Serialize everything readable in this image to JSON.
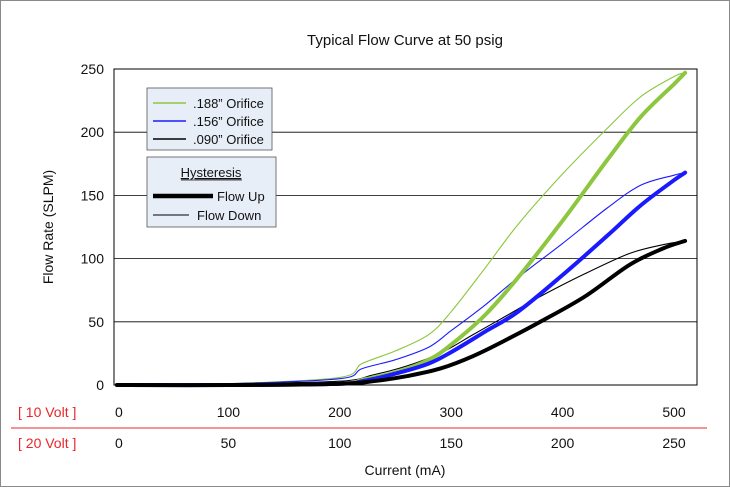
{
  "chart_data": {
    "type": "line",
    "title": "Typical Flow Curve at 50 psig",
    "ylabel": "Flow Rate (SLPM)",
    "xlabel": "Current (mA)",
    "ylim": [
      0,
      250
    ],
    "yticks": [
      "0",
      "50",
      "100",
      "150",
      "200",
      "250"
    ],
    "xlim": [
      0,
      520
    ],
    "grid": "horizontal",
    "x_scales": [
      {
        "label": "[ 10 Volt ]",
        "ticks": [
          "0",
          "100",
          "200",
          "300",
          "400",
          "500"
        ],
        "color": "#e8262b"
      },
      {
        "label": "[ 20 Volt ]",
        "ticks": [
          "0",
          "50",
          "100",
          "150",
          "200",
          "250"
        ],
        "color": "#e8262b"
      }
    ],
    "legend_orifice": {
      "placement": "top-left",
      "entries": [
        {
          "label": ".188” Orifice",
          "color": "#8dc63f"
        },
        {
          "label": ".156” Orifice",
          "color": "#1a1aff"
        },
        {
          "label": ".090” Orifice",
          "color": "#000000"
        }
      ]
    },
    "legend_hysteresis": {
      "title": "Hysteresis",
      "entries": [
        {
          "label": "Flow Up",
          "style": "thick"
        },
        {
          "label": "Flow Down",
          "style": "thin"
        }
      ]
    },
    "series": [
      {
        "orifice": ".188” Orifice",
        "direction": "Flow Up",
        "color": "#8dc63f",
        "x": [
          0,
          100,
          200,
          220,
          250,
          280,
          300,
          330,
          360,
          400,
          440,
          470,
          500,
          510
        ],
        "y": [
          0,
          0,
          1,
          4,
          10,
          20,
          32,
          55,
          85,
          130,
          178,
          212,
          238,
          247
        ]
      },
      {
        "orifice": ".188” Orifice",
        "direction": "Flow Down",
        "color": "#8dc63f",
        "x": [
          0,
          100,
          200,
          220,
          250,
          280,
          300,
          330,
          360,
          400,
          440,
          470,
          500,
          510
        ],
        "y": [
          0,
          1,
          6,
          17,
          27,
          40,
          58,
          92,
          127,
          167,
          203,
          228,
          244,
          247
        ]
      },
      {
        "orifice": ".156” Orifice",
        "direction": "Flow Up",
        "color": "#1a1aff",
        "x": [
          0,
          100,
          200,
          220,
          250,
          280,
          300,
          330,
          360,
          400,
          440,
          470,
          500,
          510
        ],
        "y": [
          0,
          0,
          1,
          3,
          9,
          17,
          26,
          42,
          58,
          87,
          118,
          142,
          162,
          168
        ]
      },
      {
        "orifice": ".156” Orifice",
        "direction": "Flow Down",
        "color": "#1a1aff",
        "x": [
          0,
          100,
          200,
          220,
          250,
          280,
          300,
          330,
          360,
          400,
          440,
          470,
          500,
          510
        ],
        "y": [
          0,
          1,
          5,
          13,
          20,
          30,
          43,
          63,
          85,
          112,
          140,
          158,
          166,
          168
        ]
      },
      {
        "orifice": ".090” Orifice",
        "direction": "Flow Up",
        "color": "#000000",
        "x": [
          0,
          100,
          200,
          230,
          260,
          290,
          320,
          350,
          380,
          420,
          460,
          490,
          510
        ],
        "y": [
          0,
          0,
          1,
          3,
          7,
          13,
          23,
          36,
          50,
          70,
          95,
          108,
          114
        ]
      },
      {
        "orifice": ".090” Orifice",
        "direction": "Flow Down",
        "color": "#000000",
        "x": [
          0,
          100,
          200,
          230,
          260,
          290,
          320,
          350,
          380,
          420,
          460,
          490,
          510
        ],
        "y": [
          0,
          1,
          3,
          8,
          15,
          25,
          40,
          55,
          70,
          88,
          104,
          111,
          114
        ]
      }
    ]
  }
}
